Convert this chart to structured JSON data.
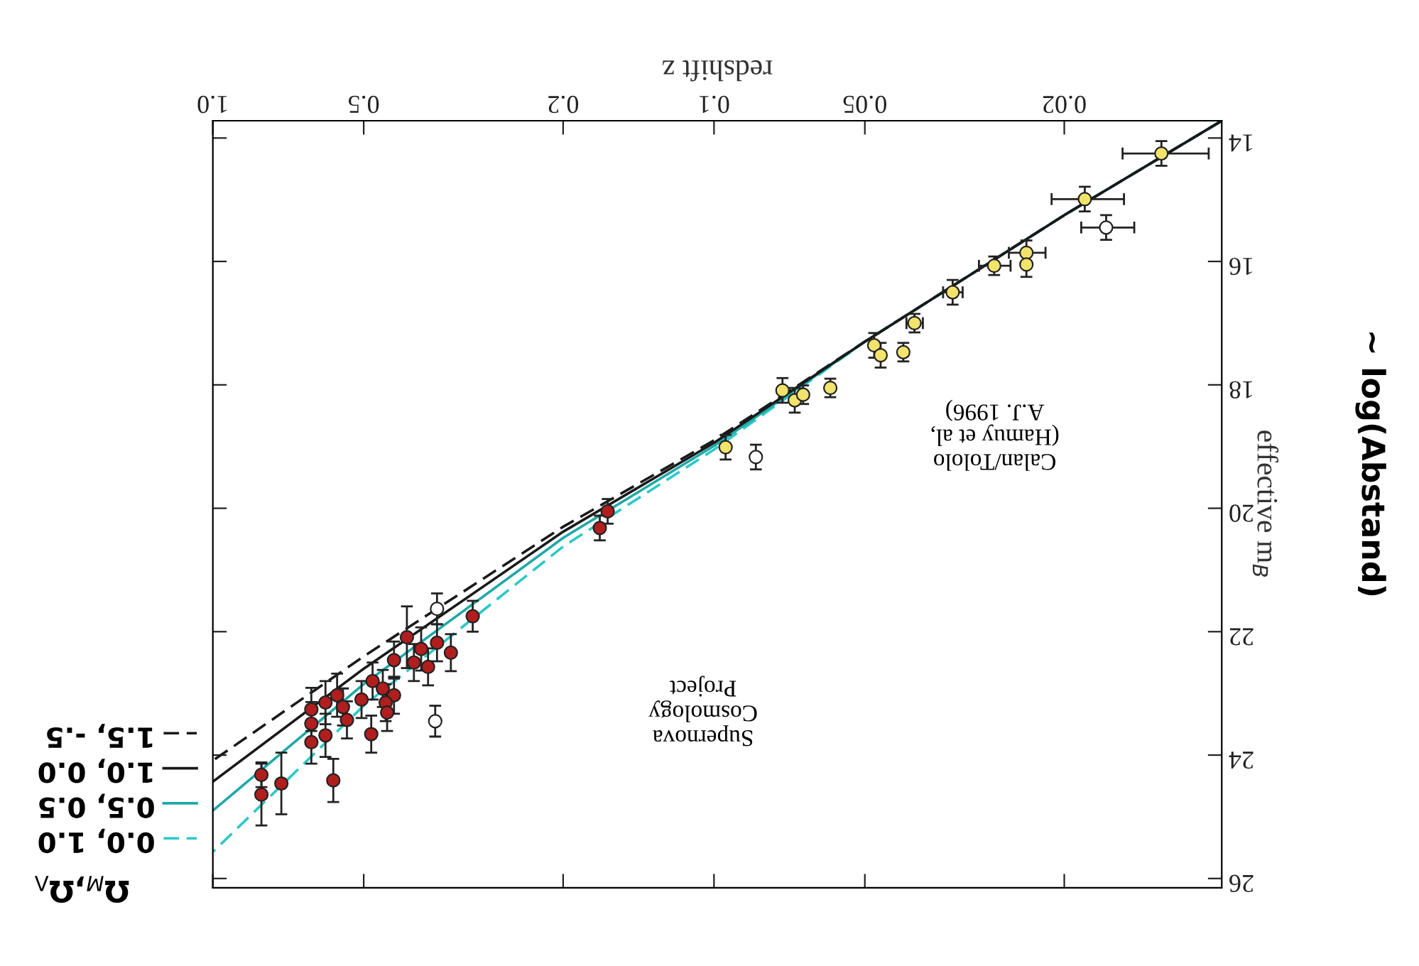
{
  "chart_data": {
    "type": "scatter",
    "xlabel": "redshift z",
    "ylabel": "effective m$_{B}$",
    "legend_title": "Ω$_{M}$,Ω$_{Λ}$",
    "annotations": [
      "Supernova\nCosmology\nProject",
      "Calan/Tololo\n(Hamuy et al,\nA.J. 1996)",
      "~ log(Abstand)"
    ],
    "log": "x",
    "xlim": [
      1.0,
      0.0097
    ],
    "ylim": [
      26.15,
      13.72
    ],
    "xticks": [
      {
        "value": 1.0,
        "label": "1.0"
      },
      0.5,
      0.2,
      0.1,
      0.05,
      0.02
    ],
    "yticks": [
      14,
      16,
      18,
      20,
      22,
      24,
      26
    ],
    "legend": "bottom left",
    "series": [
      {
        "type": "line",
        "name": "0.0, 1.0",
        "color": "#2cc8c8",
        "line_style": "dashed",
        "x": [
          0.0097,
          0.02,
          0.05,
          0.1,
          0.2,
          0.5,
          1.0
        ],
        "values": [
          13.72,
          15.25,
          17.3,
          19.05,
          20.62,
          23.2,
          25.57
        ]
      },
      {
        "type": "line",
        "name": "0.5, 0.5",
        "color": "#1fa8a8",
        "line_style": "solid",
        "x": [
          0.0097,
          0.02,
          0.05,
          0.1,
          0.2,
          0.5,
          1.0
        ],
        "values": [
          13.72,
          15.25,
          17.3,
          18.99,
          20.48,
          22.85,
          24.9
        ]
      },
      {
        "type": "line",
        "name": "1.0, 0.0",
        "color": "#1a1a1a",
        "line_style": "solid",
        "x": [
          0.0097,
          0.02,
          0.05,
          0.1,
          0.2,
          0.5,
          1.0
        ],
        "values": [
          13.72,
          15.25,
          17.3,
          18.94,
          20.38,
          22.6,
          24.43
        ]
      },
      {
        "type": "line",
        "name": "1.5, -.5",
        "color": "#1a1a1a",
        "line_style": "dashed",
        "x": [
          0.0097,
          0.02,
          0.05,
          0.1,
          0.2,
          0.5,
          1.0
        ],
        "values": [
          13.72,
          15.25,
          17.3,
          18.9,
          20.3,
          22.4,
          24.09
        ]
      },
      {
        "color": "#f2e36a",
        "marker": "circle",
        "x": [
          0.0128,
          0.0182,
          0.0238,
          0.0238,
          0.0276,
          0.0334,
          0.0398,
          0.0479,
          0.0465,
          0.0419,
          0.073,
          0.069,
          0.0664,
          0.0586,
          0.0948
        ],
        "values": [
          14.25,
          14.99,
          15.86,
          16.05,
          16.07,
          16.5,
          17.0,
          17.36,
          17.52,
          17.47,
          18.09,
          18.25,
          18.16,
          18.05,
          19.01
        ],
        "errors": [
          0.2,
          0.2,
          0.2,
          0.2,
          0.15,
          0.2,
          0.15,
          0.2,
          0.2,
          0.15,
          0.2,
          0.2,
          0.15,
          0.15,
          0.2
        ],
        "xerrors": [
          0.0025,
          0.003,
          0.002,
          null,
          0.002,
          0.0015,
          0.0015,
          null,
          null,
          null,
          null,
          null,
          null,
          null,
          null
        ]
      },
      {
        "color": "#ffffff",
        "marker": "circle",
        "x": [
          0.0165,
          0.0825,
          0.357,
          0.36
        ],
        "values": [
          15.45,
          19.17,
          21.63,
          23.45
        ],
        "errors": [
          0.2,
          0.2,
          0.25,
          0.25
        ],
        "xerrors": [
          0.002,
          null,
          null,
          null
        ]
      },
      {
        "color": "#b01e1e",
        "marker": "circle",
        "x": [
          0.163,
          0.169,
          0.303,
          0.41,
          0.384,
          0.357,
          0.335,
          0.372,
          0.397,
          0.435,
          0.48,
          0.458,
          0.435,
          0.452,
          0.449,
          0.505,
          0.483,
          0.565,
          0.596,
          0.55,
          0.636,
          0.54,
          0.636,
          0.596,
          0.636,
          0.575,
          0.73,
          0.8,
          0.8
        ],
        "values": [
          20.05,
          20.32,
          21.75,
          22.09,
          22.28,
          22.18,
          22.34,
          22.57,
          22.5,
          22.46,
          22.8,
          22.92,
          23.03,
          23.15,
          23.31,
          23.1,
          23.66,
          23.03,
          23.15,
          23.22,
          23.26,
          23.43,
          23.49,
          23.68,
          23.79,
          24.41,
          24.46,
          24.32,
          24.64
        ],
        "errors": [
          0.2,
          0.2,
          0.25,
          0.5,
          0.35,
          0.3,
          0.3,
          0.3,
          0.3,
          0.3,
          0.3,
          0.3,
          0.3,
          0.3,
          0.3,
          0.3,
          0.3,
          0.35,
          0.35,
          0.3,
          0.35,
          0.3,
          0.35,
          0.35,
          0.35,
          0.35,
          0.5,
          0.2,
          0.5
        ]
      }
    ]
  }
}
